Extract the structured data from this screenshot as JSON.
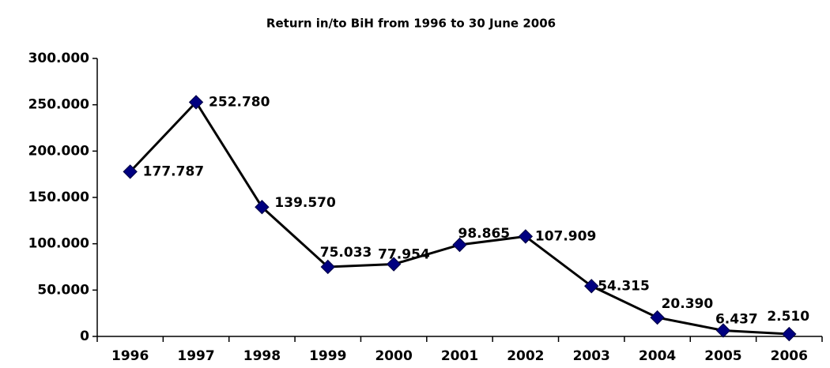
{
  "chart_data": {
    "type": "line",
    "title": "Return in/to BiH from 1996 to 30 June 2006",
    "categories": [
      "1996",
      "1997",
      "1998",
      "1999",
      "2000",
      "2001",
      "2002",
      "2003",
      "2004",
      "2005",
      "2006"
    ],
    "series": [
      {
        "name": "Return",
        "color": "#000080",
        "values": [
          177787,
          252780,
          139570,
          75033,
          77954,
          98865,
          107909,
          54315,
          20390,
          6437,
          2510
        ],
        "value_labels": [
          "177.787",
          "252.780",
          "139.570",
          "75.033",
          "77.954",
          "98.865",
          "107.909",
          "54.315",
          "20.390",
          "6.437",
          "2.510"
        ]
      }
    ],
    "ylim": [
      0,
      300000
    ],
    "yticks": [
      0,
      {
        "value": 50000,
        "label": "50.000"
      },
      {
        "value": 100000,
        "label": "100.000"
      },
      {
        "value": 150000,
        "label": "150.000"
      },
      {
        "value": 200000,
        "label": "200.000"
      },
      {
        "value": 250000,
        "label": "250.000"
      },
      {
        "value": 300000,
        "label": "300.000"
      }
    ],
    "grid": false
  }
}
